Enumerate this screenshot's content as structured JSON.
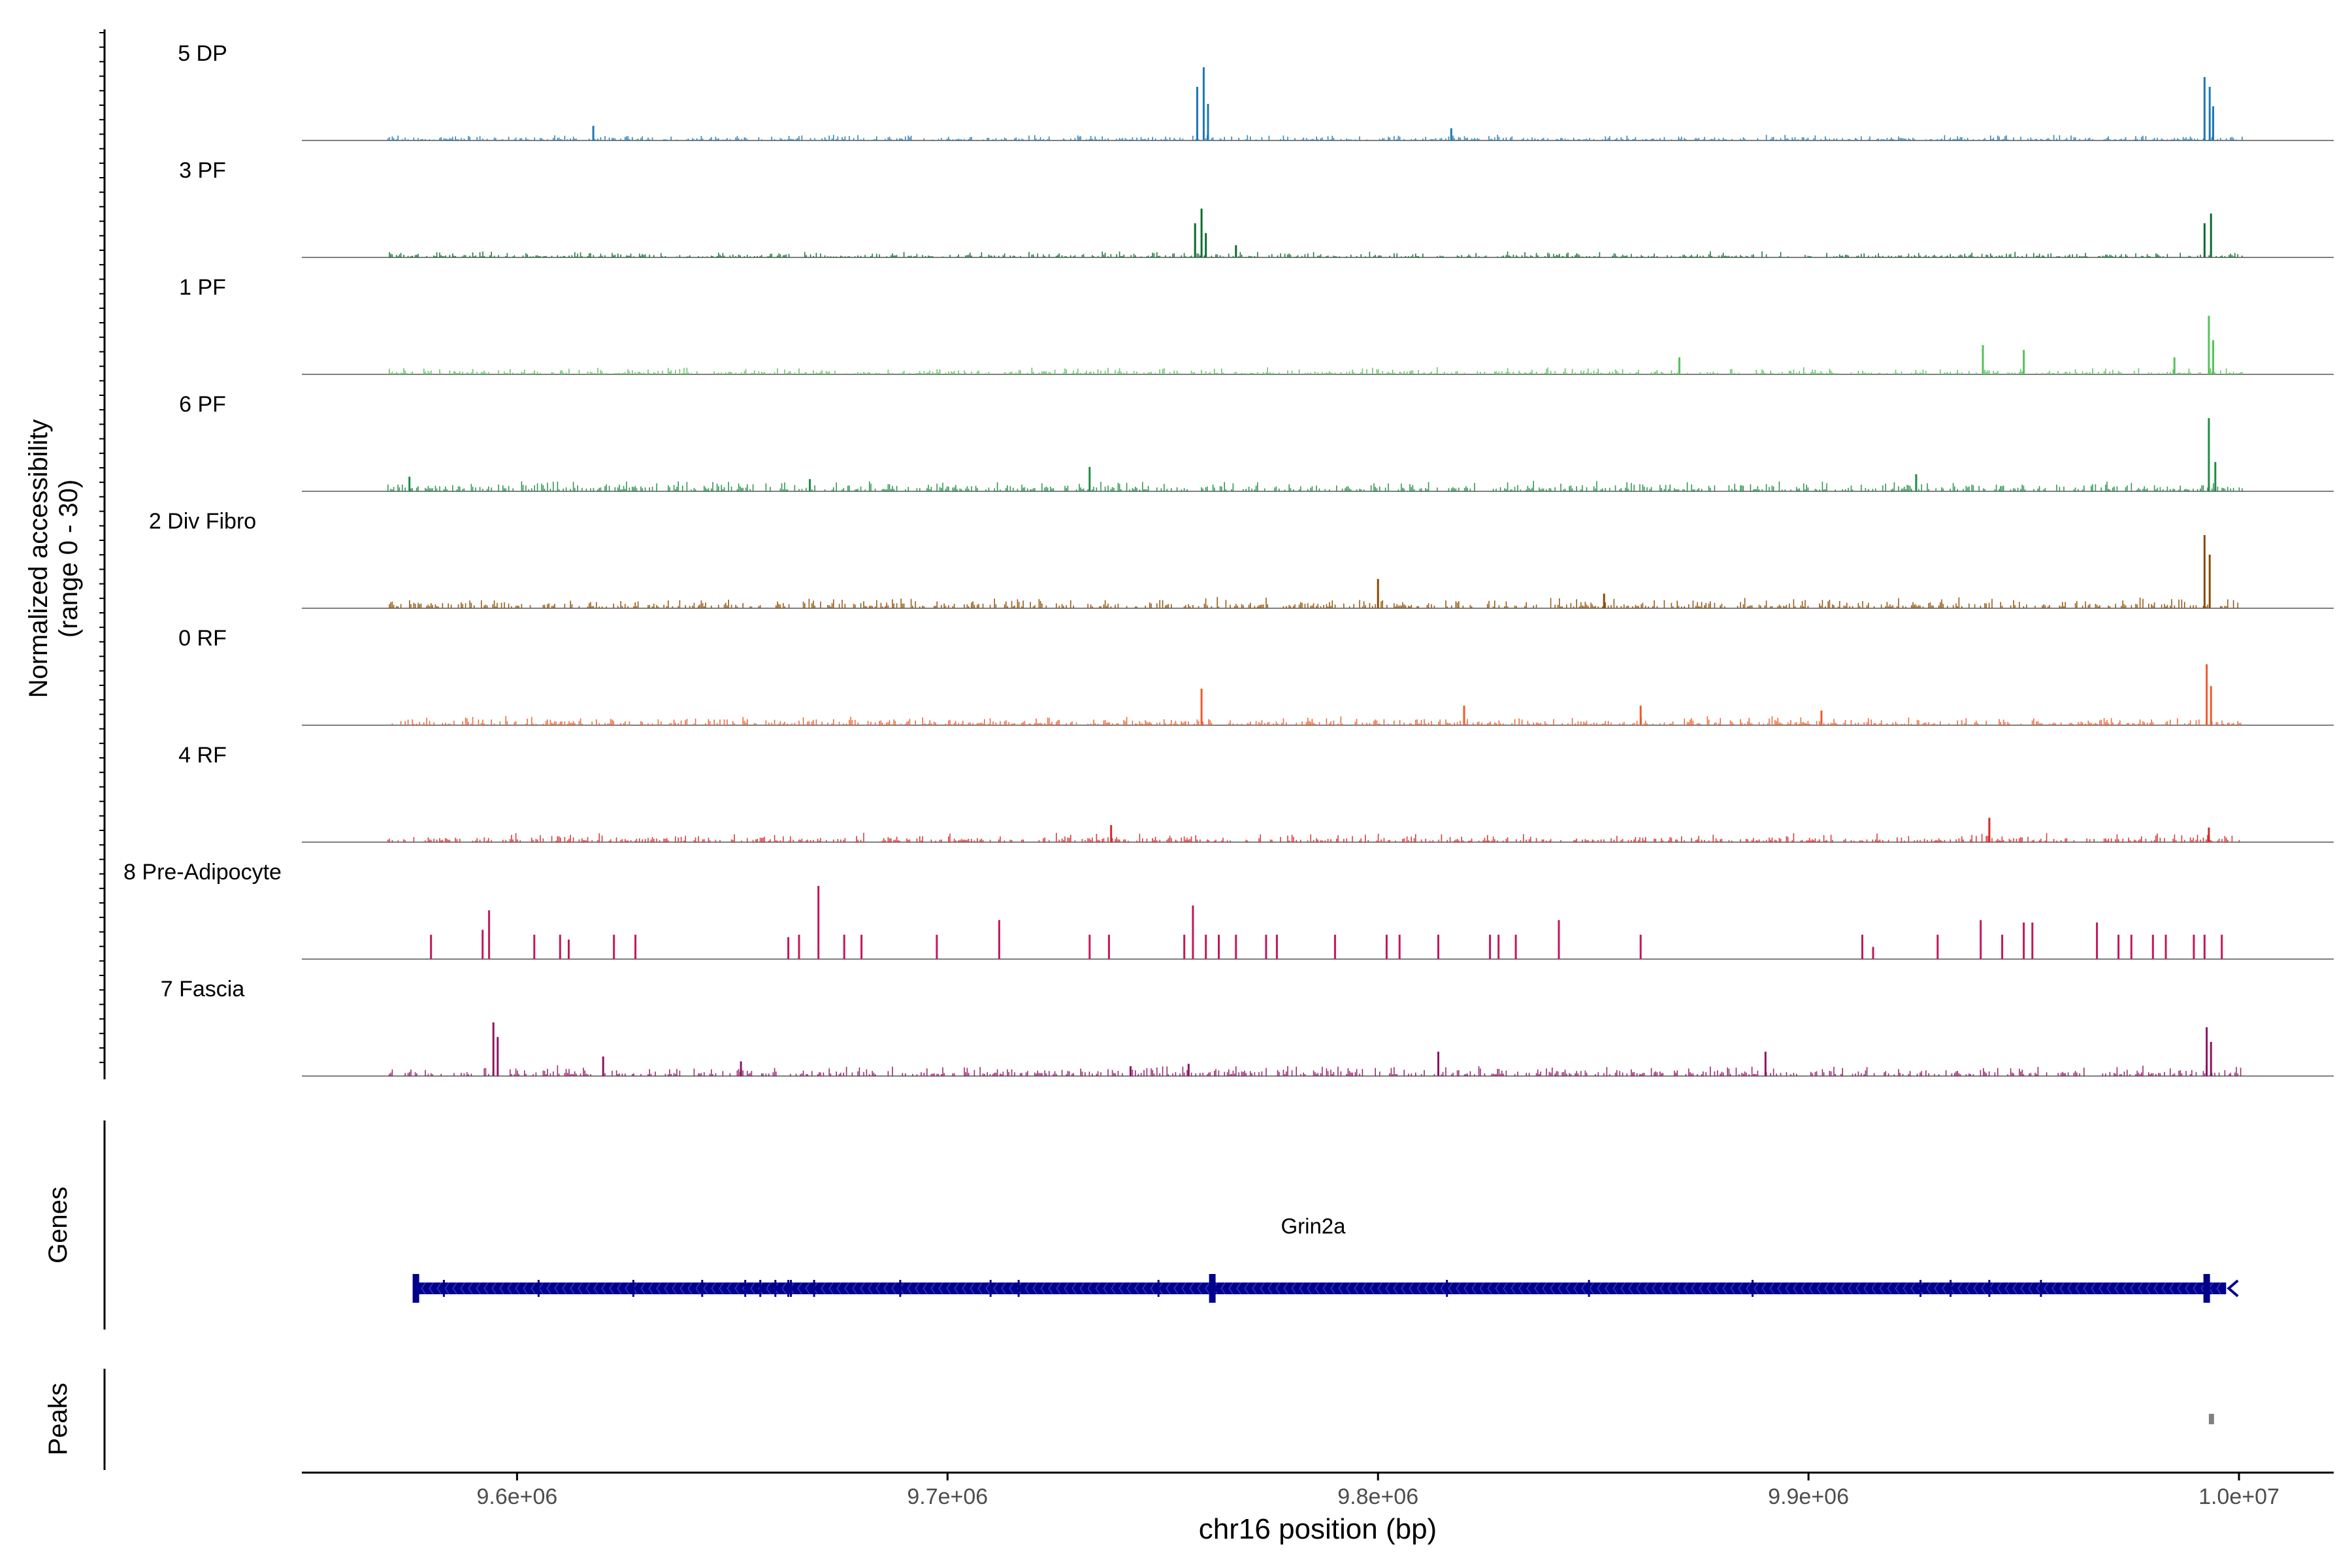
{
  "chart_data": {
    "type": "area",
    "title": "",
    "chromosome": "chr16",
    "xlabel": "chr16 position (bp)",
    "ylabel": "Normalized accessibility",
    "ylabel_sub": "(range 0 - 30)",
    "ylim": [
      0,
      30
    ],
    "xlim": [
      9550000,
      10022000
    ],
    "x_ticks": [
      {
        "value": 9600000,
        "label": "9.6e+06"
      },
      {
        "value": 9700000,
        "label": "9.7e+06"
      },
      {
        "value": 9800000,
        "label": "9.8e+06"
      },
      {
        "value": 9900000,
        "label": "9.9e+06"
      },
      {
        "value": 10000000,
        "label": "1.0e+07"
      }
    ],
    "series": [
      {
        "name": "5 DP",
        "color": "#1f77b4",
        "baseline": 1.0,
        "peaks": [
          [
            9617700,
            6
          ],
          [
            9758000,
            22
          ],
          [
            9759500,
            30
          ],
          [
            9760500,
            15
          ],
          [
            9817000,
            5
          ],
          [
            9992000,
            26
          ],
          [
            9993200,
            22
          ],
          [
            9994000,
            14
          ]
        ]
      },
      {
        "name": "3 PF",
        "color": "#0b6b2e",
        "baseline": 1.0,
        "peaks": [
          [
            9757500,
            14
          ],
          [
            9759000,
            20
          ],
          [
            9760000,
            10
          ],
          [
            9767000,
            5
          ],
          [
            9992000,
            14
          ],
          [
            9993500,
            18
          ]
        ]
      },
      {
        "name": "1 PF",
        "color": "#55c25a",
        "baseline": 1.2,
        "peaks": [
          [
            9870000,
            7
          ],
          [
            9940500,
            12
          ],
          [
            9950000,
            10
          ],
          [
            9985000,
            7
          ],
          [
            9993000,
            24
          ],
          [
            9994000,
            14
          ]
        ]
      },
      {
        "name": "6 PF",
        "color": "#1e8c45",
        "baseline": 1.8,
        "peaks": [
          [
            9575000,
            6
          ],
          [
            9668000,
            5
          ],
          [
            9733000,
            10
          ],
          [
            9925000,
            7
          ],
          [
            9993000,
            30
          ],
          [
            9994500,
            12
          ]
        ]
      },
      {
        "name": "2 Div Fibro",
        "color": "#8b4a00",
        "baseline": 1.8,
        "peaks": [
          [
            9800000,
            12
          ],
          [
            9852500,
            6
          ],
          [
            9992000,
            30
          ],
          [
            9993200,
            22
          ]
        ]
      },
      {
        "name": "0 RF",
        "color": "#f15a29",
        "baseline": 1.5,
        "peaks": [
          [
            9759000,
            15
          ],
          [
            9820000,
            8
          ],
          [
            9861000,
            8
          ],
          [
            9903000,
            6
          ],
          [
            9992500,
            25
          ],
          [
            9993500,
            16
          ]
        ]
      },
      {
        "name": "4 RF",
        "color": "#d62728",
        "baseline": 1.5,
        "peaks": [
          [
            9738000,
            7
          ],
          [
            9942000,
            10
          ],
          [
            9993000,
            6
          ]
        ]
      },
      {
        "name": "8 Pre-Adipocyte",
        "color": "#c2185b",
        "baseline": 0,
        "peaks": [
          [
            9580000,
            10
          ],
          [
            9592000,
            12
          ],
          [
            9593500,
            20
          ],
          [
            9604000,
            10
          ],
          [
            9610000,
            10
          ],
          [
            9612000,
            8
          ],
          [
            9622500,
            10
          ],
          [
            9627500,
            10
          ],
          [
            9663000,
            9
          ],
          [
            9665500,
            10
          ],
          [
            9670000,
            30
          ],
          [
            9676000,
            10
          ],
          [
            9680000,
            10
          ],
          [
            9697500,
            10
          ],
          [
            9712000,
            16
          ],
          [
            9733000,
            10
          ],
          [
            9737500,
            10
          ],
          [
            9755000,
            10
          ],
          [
            9757000,
            22
          ],
          [
            9760000,
            10
          ],
          [
            9763000,
            10
          ],
          [
            9767000,
            10
          ],
          [
            9774000,
            10
          ],
          [
            9776500,
            10
          ],
          [
            9790000,
            10
          ],
          [
            9802000,
            10
          ],
          [
            9805000,
            10
          ],
          [
            9814000,
            10
          ],
          [
            9826000,
            10
          ],
          [
            9828000,
            10
          ],
          [
            9832000,
            10
          ],
          [
            9842000,
            16
          ],
          [
            9861000,
            10
          ],
          [
            9912500,
            10
          ],
          [
            9915000,
            5
          ],
          [
            9930000,
            10
          ],
          [
            9940000,
            16
          ],
          [
            9945000,
            10
          ],
          [
            9950000,
            15
          ],
          [
            9952000,
            15
          ],
          [
            9967000,
            15
          ],
          [
            9972000,
            10
          ],
          [
            9975000,
            10
          ],
          [
            9980000,
            10
          ],
          [
            9983000,
            10
          ],
          [
            9989500,
            10
          ],
          [
            9992000,
            10
          ],
          [
            9996000,
            10
          ]
        ]
      },
      {
        "name": "7 Fascia",
        "color": "#8e1463",
        "baseline": 1.8,
        "peaks": [
          [
            9594500,
            22
          ],
          [
            9595500,
            16
          ],
          [
            9620000,
            8
          ],
          [
            9652000,
            6
          ],
          [
            9742500,
            4
          ],
          [
            9756000,
            5
          ],
          [
            9814000,
            10
          ],
          [
            9890000,
            10
          ],
          [
            9992500,
            20
          ],
          [
            9993500,
            14
          ]
        ]
      }
    ],
    "genes": {
      "label": "Genes",
      "gene_name": "Grin2a",
      "color": "#00008b",
      "start": 9576000,
      "end": 9997000,
      "strand": "-",
      "exons": [
        9576500,
        9583000,
        9605000,
        9627000,
        9643000,
        9653000,
        9656500,
        9660000,
        9663000,
        9663600,
        9669000,
        9689000,
        9710000,
        9716500,
        9749000,
        9761500,
        9816000,
        9849000,
        9887000,
        9926000,
        9933000,
        9942000,
        9954000,
        9992500
      ]
    },
    "peaks_track": {
      "label": "Peaks",
      "color": "#808080",
      "regions": [
        [
          9993000,
          9994200
        ]
      ]
    }
  }
}
